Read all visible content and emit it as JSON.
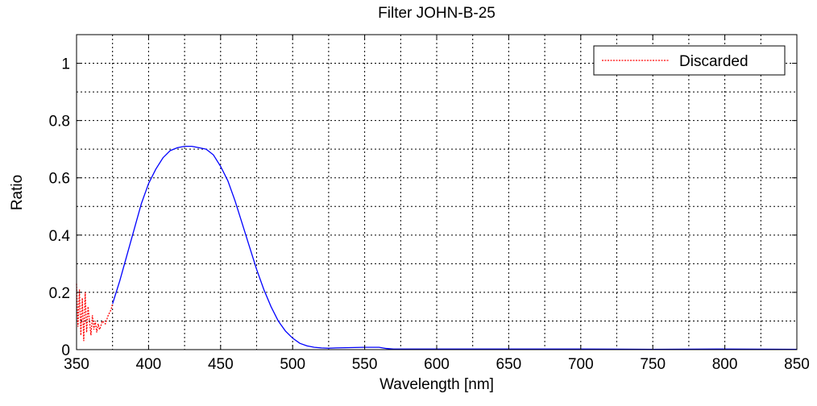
{
  "chart_data": {
    "type": "line",
    "title": "Filter JOHN-B-25",
    "xlabel": "Wavelength [nm]",
    "ylabel": "Ratio",
    "xlim": [
      350,
      850
    ],
    "ylim": [
      0,
      1.1
    ],
    "xticks": [
      350,
      400,
      450,
      500,
      550,
      600,
      650,
      700,
      750,
      800,
      850
    ],
    "yticks": [
      0,
      0.2,
      0.4,
      0.6,
      0.8,
      1
    ],
    "ytick_labels": [
      "0",
      "0.2",
      "0.4",
      "0.6",
      "0.8",
      "1"
    ],
    "grid": true,
    "grid_style": "dotted",
    "legend": {
      "position": "top-right",
      "entries": [
        "Discarded"
      ]
    },
    "series": [
      {
        "name": "Discarded",
        "color": "#ff0000",
        "style": "dotted",
        "x": [
          350,
          351,
          352,
          353,
          354,
          355,
          356,
          357,
          358,
          359,
          360,
          361,
          362,
          363,
          364,
          365,
          366,
          368,
          370,
          372,
          374,
          375
        ],
        "y": [
          0.23,
          0.08,
          0.21,
          0.05,
          0.18,
          0.03,
          0.2,
          0.06,
          0.15,
          0.1,
          0.05,
          0.12,
          0.07,
          0.1,
          0.06,
          0.09,
          0.07,
          0.1,
          0.09,
          0.12,
          0.14,
          0.16
        ]
      },
      {
        "name": "",
        "color": "#0000ff",
        "style": "solid",
        "x": [
          375,
          380,
          385,
          390,
          395,
          400,
          405,
          410,
          415,
          420,
          425,
          430,
          435,
          440,
          445,
          450,
          455,
          460,
          465,
          470,
          475,
          480,
          485,
          490,
          495,
          500,
          505,
          510,
          515,
          520,
          525,
          530,
          540,
          550,
          560,
          565,
          570,
          600,
          650,
          700,
          750,
          800,
          850
        ],
        "y": [
          0.16,
          0.24,
          0.33,
          0.42,
          0.51,
          0.58,
          0.63,
          0.67,
          0.695,
          0.705,
          0.71,
          0.71,
          0.705,
          0.7,
          0.68,
          0.64,
          0.59,
          0.52,
          0.44,
          0.36,
          0.28,
          0.21,
          0.15,
          0.1,
          0.065,
          0.04,
          0.022,
          0.013,
          0.008,
          0.006,
          0.005,
          0.006,
          0.007,
          0.008,
          0.008,
          0.004,
          0.002,
          0.002,
          0.002,
          0.002,
          0.001,
          0.002,
          0.001
        ]
      }
    ]
  }
}
